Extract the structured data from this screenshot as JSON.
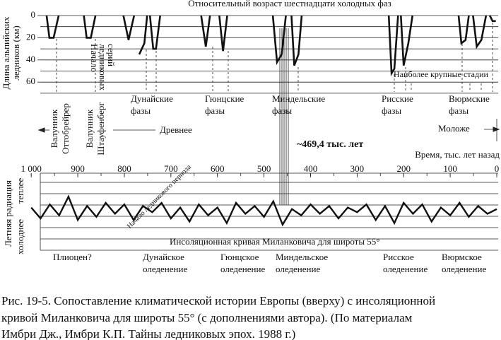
{
  "figure": {
    "title": "Относительный возраст шестнадцати холодных фаз",
    "y_label": [
      "Длина альпийских",
      "ледников (км)"
    ],
    "yticks": [
      0,
      20,
      40,
      60
    ],
    "series_start": [
      "Начало",
      "ледниковых",
      "серий"
    ],
    "phases": [
      [
        "Дунайские",
        "фазы"
      ],
      [
        "Гюнцские",
        "фазы"
      ],
      [
        "Миндельские",
        "фазы"
      ],
      [
        "Рисские",
        "фазы"
      ],
      [
        "Вюрмские",
        "фазы"
      ]
    ],
    "largest_stages": "Наиболее крупные стадии",
    "boulders": [
      [
        "Валунник",
        "Оттобрейрер"
      ],
      [
        "Валунник",
        "Штауфенберг"
      ]
    ],
    "older": "Древнее",
    "younger": "Моложе",
    "marker_label": "~469,4 тыс. лет",
    "time_label": "Время, тыс. лет назад",
    "xticks": [
      {
        "value": 1000,
        "label": "1 000"
      },
      900,
      800,
      700,
      600,
      500,
      400,
      300,
      200,
      100,
      0
    ],
    "glaciers": [
      {
        "t": [
          967,
          961,
          952,
          941
        ],
        "km": [
          0,
          20,
          20,
          0
        ]
      },
      {
        "t": [
          887,
          881,
          872,
          862
        ],
        "km": [
          0,
          20,
          20,
          0
        ]
      },
      {
        "t": [
          802,
          791,
          779
        ],
        "km": [
          0,
          22,
          0
        ]
      },
      {
        "t": [
          768,
          757,
          751
        ],
        "km": [
          35,
          25,
          0
        ]
      },
      {
        "t": [
          745,
          738,
          732,
          723
        ],
        "km": [
          0,
          30,
          30,
          0
        ]
      },
      {
        "t": [
          635,
          625,
          616
        ],
        "km": [
          0,
          28,
          0
        ]
      },
      {
        "t": [
          596,
          588,
          579
        ],
        "km": [
          0,
          32,
          0
        ]
      },
      {
        "t": [
          481,
          472,
          462,
          453
        ],
        "km": [
          0,
          42,
          35,
          0
        ]
      },
      {
        "t": [
          441,
          435,
          426,
          419
        ],
        "km": [
          0,
          45,
          35,
          0
        ]
      },
      {
        "t": [
          232,
          226,
          220,
          212
        ],
        "km": [
          0,
          52,
          48,
          0
        ]
      },
      {
        "t": [
          206,
          200,
          190,
          181
        ],
        "km": [
          0,
          45,
          25,
          0
        ]
      },
      {
        "t": [
          82,
          76,
          67,
          60
        ],
        "km": [
          0,
          25,
          22,
          0
        ]
      },
      {
        "t": [
          51,
          43,
          33,
          23
        ],
        "km": [
          0,
          28,
          22,
          0
        ]
      },
      {
        "t": [
          15,
          9,
          2
        ],
        "km": [
          0,
          5,
          5
        ]
      }
    ],
    "radiation_label": "Летняя радиация",
    "warmer": "теплее",
    "colder": "холоднее",
    "glacial_start": "Начало ледникового периода",
    "insolation_label": "Инсоляционная кривая Миланковича для широты 55°",
    "insolation": {
      "t": [
        1000,
        980,
        960,
        940,
        920,
        900,
        880,
        860,
        840,
        820,
        800,
        780,
        760,
        740,
        720,
        700,
        680,
        660,
        640,
        620,
        600,
        580,
        560,
        540,
        520,
        500,
        480,
        460,
        440,
        420,
        400,
        380,
        360,
        340,
        320,
        300,
        280,
        260,
        240,
        220,
        200,
        180,
        160,
        140,
        120,
        100,
        80,
        60,
        40,
        20,
        0
      ],
      "v": [
        0.2,
        -0.5,
        0.4,
        -0.3,
        0.9,
        -0.6,
        0.3,
        -0.4,
        0.5,
        -0.2,
        0.4,
        -0.6,
        0.3,
        -0.1,
        0.5,
        -0.5,
        0.2,
        -0.7,
        0.4,
        -0.3,
        0.2,
        -0.8,
        0.5,
        -0.2,
        0.3,
        -0.4,
        0.6,
        -0.9,
        0.1,
        -0.3,
        0.4,
        -0.2,
        0.3,
        -0.5,
        0.2,
        -0.1,
        0.4,
        -0.6,
        0.3,
        -0.8,
        0.5,
        -0.2,
        0.4,
        -0.7,
        0.2,
        -0.3,
        0.5,
        -0.4,
        0.3,
        -0.2,
        0.1
      ]
    },
    "pliocene": "Плиоцен?",
    "glaciations": [
      [
        "Дунайское",
        "оледенение"
      ],
      [
        "Гюнцское",
        "оледенение"
      ],
      [
        "Миндельское",
        "оледенение"
      ],
      [
        "Рисское",
        "оледенение"
      ],
      [
        "Вюрмское",
        "оледенение"
      ]
    ]
  },
  "caption": [
    "Рис. 19-5. Сопоставление климатической истории Европы (вверху) с инсоляционной",
    "кривой Миланковича для широты 55° (с дополнениями автора). (По материалам",
    "Имбри Дж., Имбри К.П. Тайны ледниковых эпох. 1988 г.)"
  ]
}
